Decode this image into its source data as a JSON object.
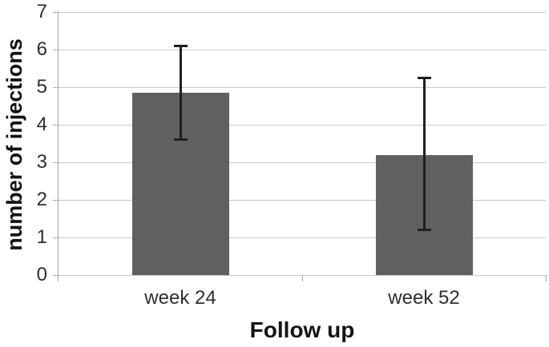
{
  "chart_data": {
    "type": "bar",
    "title": "",
    "xlabel": "Follow up",
    "ylabel": "number of injections",
    "categories": [
      "week 24",
      "week 52"
    ],
    "values": [
      4.85,
      3.2
    ],
    "error_low": [
      3.6,
      1.2
    ],
    "error_high": [
      6.1,
      5.25
    ],
    "ylim": [
      0,
      7
    ],
    "ytick_step": 1,
    "ytick_labels": [
      "0",
      "1",
      "2",
      "3",
      "4",
      "5",
      "6",
      "7"
    ],
    "grid": true,
    "legend": "none",
    "colors": {
      "bar_fill": "#606060",
      "gridline": "#c8c8c8",
      "axis_line": "#a6a6a6",
      "tick_mark": "#aaaaaa",
      "error_bar": "#1f1f1f",
      "tick_text": "#2e2e2e",
      "title_text": "#141414",
      "background": "#ffffff"
    }
  }
}
